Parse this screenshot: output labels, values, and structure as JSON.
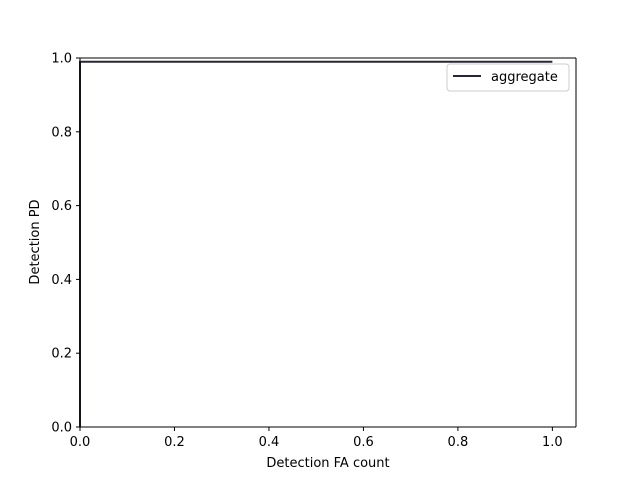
{
  "chart_data": {
    "type": "line",
    "title": "",
    "xlabel": "Detection FA count",
    "ylabel": "Detection PD",
    "xlim": [
      0.0,
      1.05
    ],
    "ylim": [
      0.0,
      1.0
    ],
    "xticks": [
      "0.0",
      "0.2",
      "0.4",
      "0.6",
      "0.8",
      "1.0"
    ],
    "yticks": [
      "0.0",
      "0.2",
      "0.4",
      "0.6",
      "0.8",
      "1.0"
    ],
    "grid": false,
    "legend": {
      "placement": "top-right",
      "entries": [
        "aggregate"
      ]
    },
    "series": [
      {
        "name": "aggregate",
        "color": "#262636",
        "x": [
          0.0,
          0.0,
          1.0
        ],
        "y": [
          0.0,
          0.99,
          0.99
        ]
      }
    ]
  }
}
